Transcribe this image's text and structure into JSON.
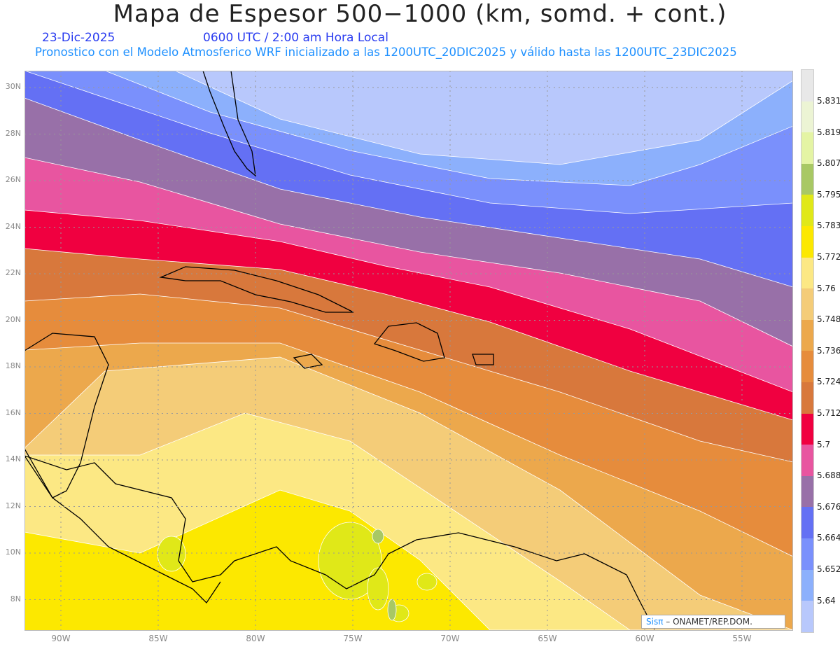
{
  "header": {
    "title": "Mapa de Espesor 500−1000 (km, somd. + cont.)",
    "date": "23-Dic-2025",
    "time": "0600 UTC / 2:00 am Hora Local",
    "subtitle": "Pronostico con el Modelo Atmosferico WRF inicializado a las 1200UTC_20DIC2025 y válido hasta las  1200UTC_23DIC2025"
  },
  "axes": {
    "lat_labels": [
      "30N",
      "28N",
      "26N",
      "24N",
      "22N",
      "20N",
      "18N",
      "16N",
      "14N",
      "12N",
      "10N",
      "8N"
    ],
    "lon_labels": [
      "90W",
      "85W",
      "80W",
      "75W",
      "70W",
      "65W",
      "60W",
      "55W"
    ]
  },
  "colorbar": {
    "labels": [
      "5.831",
      "5.819",
      "5.807",
      "5.795",
      "5.783",
      "5.772",
      "5.76",
      "5.748",
      "5.736",
      "5.724",
      "5.712",
      "5.7",
      "5.688",
      "5.676",
      "5.664",
      "5.652",
      "5.64"
    ],
    "colors": [
      "#e8e8e8",
      "#ecf4d4",
      "#e4f4a4",
      "#a8c864",
      "#e0e818",
      "#fce800",
      "#fce884",
      "#f4cc78",
      "#eca84c",
      "#e68c3c",
      "#d8783c",
      "#f00040",
      "#e855a0",
      "#9870a8",
      "#6470f4",
      "#7a90fc",
      "#8cb0fc",
      "#b8c8fc"
    ]
  },
  "credit": {
    "logo": "Sisπ",
    "text": " –  ONAMET/REP.DOM."
  }
}
